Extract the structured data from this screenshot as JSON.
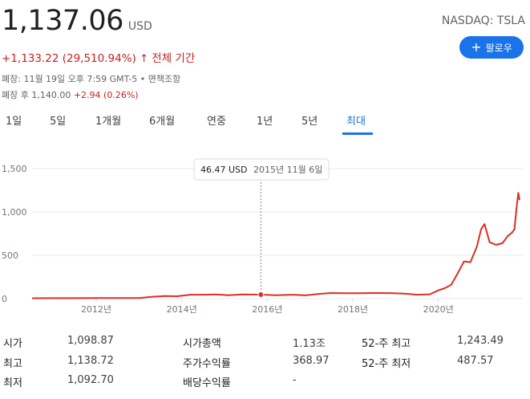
{
  "quote": {
    "price": "1,137.06",
    "currency": "USD",
    "symbol": "NASDAQ: TSLA",
    "change": "+1,133.22 (29,510.94%)",
    "change_arrow": "↑",
    "change_period": "전체 기간",
    "close_info": "폐장: 11월 19일 오후 7:59 GMT-5 • 면책조항",
    "after_label": "폐장 후 1,140.00",
    "after_change": "+2.94 (0.26%)",
    "follow_label": "팔로우"
  },
  "tabs": [
    {
      "label": "1일",
      "active": false
    },
    {
      "label": "5일",
      "active": false
    },
    {
      "label": "1개월",
      "active": false
    },
    {
      "label": "6개월",
      "active": false
    },
    {
      "label": "연중",
      "active": false
    },
    {
      "label": "1년",
      "active": false
    },
    {
      "label": "5년",
      "active": false
    },
    {
      "label": "최대",
      "active": true
    }
  ],
  "chart_data": {
    "type": "line",
    "xlabel": "",
    "ylabel": "",
    "x_ticks": [
      "2012년",
      "2014년",
      "2016년",
      "2018년",
      "2020년"
    ],
    "x_tick_values": [
      2012,
      2014,
      2016,
      2018,
      2020
    ],
    "y_ticks": [
      "0",
      "500",
      "1,000",
      "1,500"
    ],
    "y_tick_values": [
      0,
      500,
      1000,
      1500
    ],
    "xlim": [
      2010.5,
      2021.9
    ],
    "ylim": [
      0,
      1500
    ],
    "line_color": "#d93025",
    "tooltip": {
      "value": "46.47 USD",
      "date": "2015년 11월 6일",
      "x": 2015.85,
      "y": 46.47
    },
    "series": [
      {
        "x": [
          2010.5,
          2011.0,
          2011.5,
          2012.0,
          2012.5,
          2013.0,
          2013.3,
          2013.6,
          2013.9,
          2014.2,
          2014.5,
          2014.8,
          2015.1,
          2015.4,
          2015.85,
          2016.2,
          2016.6,
          2016.9,
          2017.2,
          2017.5,
          2017.8,
          2018.1,
          2018.5,
          2018.9,
          2019.2,
          2019.5,
          2019.8,
          2020.0,
          2020.15,
          2020.3,
          2020.45,
          2020.6,
          2020.75,
          2020.9,
          2021.0,
          2021.08,
          2021.2,
          2021.35,
          2021.5,
          2021.62,
          2021.72,
          2021.78,
          2021.83,
          2021.87,
          2021.9
        ],
        "y": [
          4.5,
          5.5,
          6.0,
          6.5,
          6.5,
          7.0,
          20,
          30,
          28,
          45,
          45,
          48,
          40,
          48,
          46.47,
          40,
          45,
          38,
          55,
          65,
          62,
          62,
          65,
          64,
          58,
          45,
          50,
          95,
          120,
          160,
          290,
          430,
          420,
          600,
          800,
          860,
          650,
          620,
          640,
          720,
          760,
          800,
          1050,
          1220,
          1137.06
        ]
      }
    ]
  },
  "stats": [
    [
      {
        "label": "시가",
        "value": "1,098.87"
      },
      {
        "label": "시가총액",
        "value": "1.13조"
      },
      {
        "label": "52-주 최고",
        "value": "1,243.49"
      }
    ],
    [
      {
        "label": "최고",
        "value": "1,138.72"
      },
      {
        "label": "주가수익률",
        "value": "368.97"
      },
      {
        "label": "52-주 최저",
        "value": "487.57"
      }
    ],
    [
      {
        "label": "최저",
        "value": "1,092.70"
      },
      {
        "label": "배당수익률",
        "value": "-"
      }
    ]
  ]
}
